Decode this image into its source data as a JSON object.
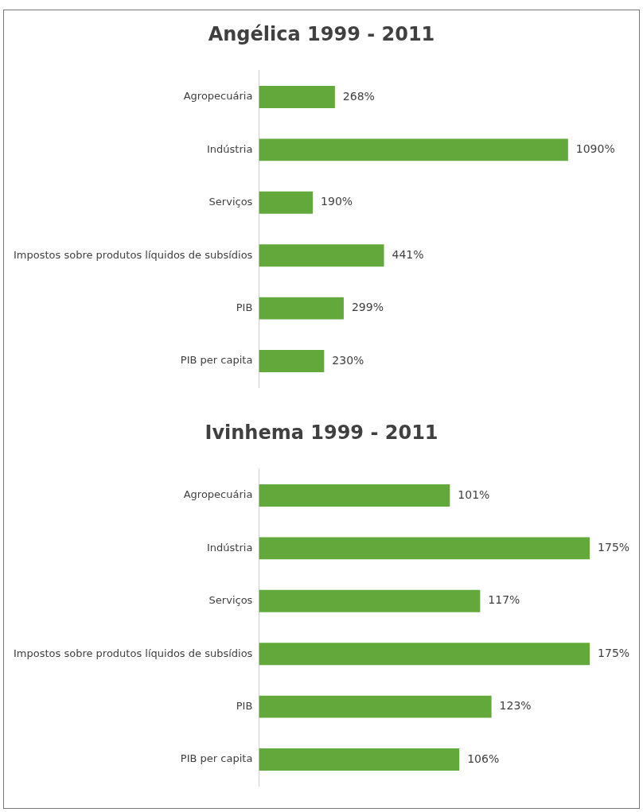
{
  "chart_data": [
    {
      "type": "bar",
      "orientation": "horizontal",
      "title": "Angélica 1999 - 2011",
      "categories": [
        "Agropecuária",
        "Indústria",
        "Serviços",
        "Impostos sobre produtos líquidos de subsídios",
        "PIB",
        "PIB per capita"
      ],
      "values": [
        268,
        1090,
        190,
        441,
        299,
        230
      ],
      "value_labels": [
        "268%",
        "1090%",
        "190%",
        "441%",
        "299%",
        "230%"
      ],
      "color": "#62a83a",
      "grid": false,
      "legend": false,
      "tick_labels": "y"
    },
    {
      "type": "bar",
      "orientation": "horizontal",
      "title": "Ivinhema 1999 - 2011",
      "categories": [
        "Agropecuária",
        "Indústria",
        "Serviços",
        "Impostos sobre produtos líquidos de subsídios",
        "PIB",
        "PIB per capita"
      ],
      "values": [
        101,
        175,
        117,
        175,
        123,
        106
      ],
      "value_labels": [
        "101%",
        "175%",
        "117%",
        "175%",
        "123%",
        "106%"
      ],
      "color": "#62a83a",
      "grid": false,
      "legend": false,
      "tick_labels": "y"
    }
  ]
}
